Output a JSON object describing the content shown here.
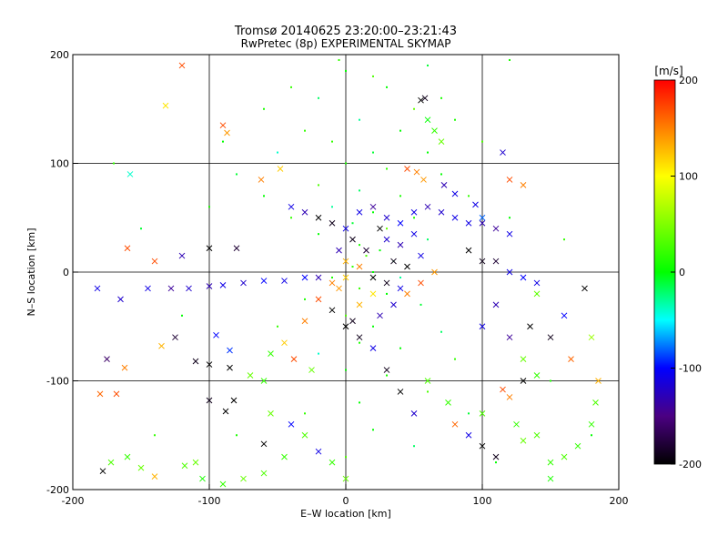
{
  "chart_data": {
    "type": "scatter",
    "title": "Tromsø 20140625 23:20:00–23:21:43",
    "subtitle": "RwPretec (8p) EXPERIMENTAL SKYMAP",
    "xlabel": "E–W location [km]",
    "ylabel": "N–S location [km]",
    "xlim": [
      -200,
      200
    ],
    "ylim": [
      -200,
      200
    ],
    "x_ticks": [
      "-200",
      "-100",
      "0",
      "100",
      "200"
    ],
    "y_ticks": [
      "-200",
      "-100",
      "0",
      "100",
      "200"
    ],
    "grid": true,
    "colorbar": {
      "label": "[m/s]",
      "range": [
        -200,
        200
      ],
      "ticks": [
        "200",
        "100",
        "0",
        "-100",
        "-200"
      ],
      "colormap": "rainbow"
    },
    "series": [
      {
        "marker": "dot",
        "points": [
          [
            -5,
            195,
            20
          ],
          [
            0,
            185,
            0
          ],
          [
            20,
            180,
            30
          ],
          [
            60,
            190,
            -10
          ],
          [
            120,
            195,
            10
          ],
          [
            -40,
            170,
            20
          ],
          [
            -20,
            160,
            -20
          ],
          [
            30,
            170,
            0
          ],
          [
            70,
            160,
            10
          ],
          [
            50,
            150,
            40
          ],
          [
            -60,
            150,
            10
          ],
          [
            10,
            140,
            -30
          ],
          [
            -30,
            130,
            20
          ],
          [
            40,
            130,
            0
          ],
          [
            80,
            140,
            10
          ],
          [
            -90,
            120,
            0
          ],
          [
            -10,
            120,
            20
          ],
          [
            20,
            110,
            -10
          ],
          [
            60,
            110,
            0
          ],
          [
            100,
            120,
            30
          ],
          [
            -50,
            110,
            -40
          ],
          [
            0,
            100,
            10
          ],
          [
            30,
            95,
            20
          ],
          [
            -80,
            90,
            -10
          ],
          [
            70,
            90,
            0
          ],
          [
            -20,
            80,
            30
          ],
          [
            10,
            75,
            -20
          ],
          [
            40,
            70,
            10
          ],
          [
            -60,
            70,
            0
          ],
          [
            90,
            70,
            20
          ],
          [
            -10,
            60,
            -30
          ],
          [
            20,
            55,
            0
          ],
          [
            50,
            50,
            10
          ],
          [
            -40,
            50,
            20
          ],
          [
            5,
            45,
            -10
          ],
          [
            30,
            40,
            40
          ],
          [
            -20,
            35,
            0
          ],
          [
            60,
            30,
            -20
          ],
          [
            10,
            25,
            10
          ],
          [
            25,
            20,
            0
          ],
          [
            15,
            15,
            30
          ],
          [
            35,
            10,
            -10
          ],
          [
            5,
            5,
            20
          ],
          [
            20,
            0,
            0
          ],
          [
            -10,
            -5,
            10
          ],
          [
            40,
            -5,
            -30
          ],
          [
            10,
            -15,
            20
          ],
          [
            30,
            -20,
            0
          ],
          [
            -30,
            -25,
            10
          ],
          [
            55,
            -30,
            -10
          ],
          [
            0,
            -40,
            30
          ],
          [
            20,
            -50,
            0
          ],
          [
            -50,
            -50,
            20
          ],
          [
            70,
            -55,
            -20
          ],
          [
            10,
            -65,
            10
          ],
          [
            40,
            -70,
            0
          ],
          [
            -20,
            -75,
            -40
          ],
          [
            80,
            -80,
            20
          ],
          [
            0,
            -90,
            0
          ],
          [
            30,
            -95,
            10
          ],
          [
            -60,
            -100,
            -10
          ],
          [
            60,
            -110,
            30
          ],
          [
            10,
            -120,
            0
          ],
          [
            -30,
            -130,
            20
          ],
          [
            90,
            -130,
            -10
          ],
          [
            20,
            -145,
            0
          ],
          [
            -80,
            -150,
            10
          ],
          [
            50,
            -160,
            -20
          ],
          [
            0,
            -170,
            30
          ],
          [
            110,
            -175,
            0
          ],
          [
            -140,
            -150,
            20
          ],
          [
            150,
            -100,
            10
          ],
          [
            -150,
            40,
            -10
          ],
          [
            -120,
            -40,
            0
          ],
          [
            160,
            30,
            20
          ],
          [
            140,
            -20,
            -30
          ],
          [
            -100,
            60,
            10
          ],
          [
            120,
            50,
            0
          ],
          [
            -170,
            100,
            20
          ],
          [
            180,
            -150,
            0
          ]
        ]
      },
      {
        "marker": "cross",
        "points": [
          [
            -120,
            190,
            170
          ],
          [
            -132,
            153,
            110
          ],
          [
            -90,
            135,
            170
          ],
          [
            -87,
            128,
            140
          ],
          [
            -158,
            90,
            -40
          ],
          [
            -62,
            85,
            150
          ],
          [
            -48,
            95,
            120
          ],
          [
            -120,
            15,
            -130
          ],
          [
            -160,
            22,
            170
          ],
          [
            -140,
            10,
            170
          ],
          [
            -100,
            22,
            -200
          ],
          [
            -80,
            22,
            -180
          ],
          [
            -182,
            -15,
            -110
          ],
          [
            -165,
            -25,
            -120
          ],
          [
            -145,
            -15,
            -110
          ],
          [
            -128,
            -15,
            -140
          ],
          [
            -115,
            -15,
            -120
          ],
          [
            -100,
            -13,
            -130
          ],
          [
            -90,
            -12,
            -110
          ],
          [
            -75,
            -10,
            -120
          ],
          [
            -60,
            -8,
            -100
          ],
          [
            -45,
            -8,
            -110
          ],
          [
            -30,
            -5,
            -100
          ],
          [
            -20,
            -5,
            -130
          ],
          [
            -175,
            -80,
            -160
          ],
          [
            -162,
            -88,
            150
          ],
          [
            -135,
            -68,
            130
          ],
          [
            -110,
            -82,
            -190
          ],
          [
            -100,
            -85,
            -200
          ],
          [
            -95,
            -58,
            -100
          ],
          [
            -125,
            -60,
            -180
          ],
          [
            -100,
            -118,
            -190
          ],
          [
            -88,
            -128,
            -200
          ],
          [
            -85,
            -72,
            -90
          ],
          [
            -55,
            -75,
            20
          ],
          [
            -25,
            -90,
            40
          ],
          [
            -180,
            -112,
            160
          ],
          [
            -168,
            -112,
            170
          ],
          [
            -172,
            -175,
            30
          ],
          [
            -178,
            -183,
            -200
          ],
          [
            -118,
            -178,
            30
          ],
          [
            -110,
            -175,
            40
          ],
          [
            -60,
            -158,
            -200
          ],
          [
            -82,
            -118,
            -200
          ],
          [
            -60,
            -100,
            20
          ],
          [
            -38,
            -80,
            170
          ],
          [
            -45,
            -65,
            120
          ],
          [
            -30,
            -45,
            150
          ],
          [
            -10,
            -35,
            -200
          ],
          [
            5,
            -45,
            -190
          ],
          [
            10,
            -30,
            130
          ],
          [
            20,
            -20,
            110
          ],
          [
            -5,
            -15,
            140
          ],
          [
            -20,
            -25,
            170
          ],
          [
            -10,
            -10,
            150
          ],
          [
            0,
            -5,
            120
          ],
          [
            -40,
            60,
            -110
          ],
          [
            -30,
            55,
            -130
          ],
          [
            -20,
            50,
            -200
          ],
          [
            -10,
            45,
            -190
          ],
          [
            0,
            40,
            -110
          ],
          [
            10,
            55,
            -110
          ],
          [
            20,
            60,
            -140
          ],
          [
            30,
            50,
            -120
          ],
          [
            40,
            45,
            -100
          ],
          [
            50,
            55,
            -110
          ],
          [
            60,
            60,
            -130
          ],
          [
            70,
            55,
            -120
          ],
          [
            80,
            50,
            -110
          ],
          [
            90,
            45,
            -110
          ],
          [
            100,
            45,
            -130
          ],
          [
            110,
            40,
            -140
          ],
          [
            120,
            35,
            -110
          ],
          [
            45,
            95,
            170
          ],
          [
            52,
            92,
            150
          ],
          [
            57,
            85,
            140
          ],
          [
            72,
            80,
            -130
          ],
          [
            80,
            72,
            -110
          ],
          [
            95,
            62,
            -110
          ],
          [
            100,
            50,
            -80
          ],
          [
            120,
            85,
            170
          ],
          [
            130,
            80,
            150
          ],
          [
            115,
            110,
            -120
          ],
          [
            55,
            158,
            -200
          ],
          [
            58,
            160,
            -190
          ],
          [
            60,
            140,
            0
          ],
          [
            65,
            130,
            20
          ],
          [
            70,
            120,
            40
          ],
          [
            90,
            20,
            -200
          ],
          [
            100,
            10,
            -190
          ],
          [
            110,
            10,
            -180
          ],
          [
            120,
            0,
            -110
          ],
          [
            130,
            -5,
            -100
          ],
          [
            140,
            -10,
            -110
          ],
          [
            110,
            -30,
            -130
          ],
          [
            100,
            -50,
            -110
          ],
          [
            120,
            -60,
            -140
          ],
          [
            135,
            -50,
            -200
          ],
          [
            150,
            -60,
            -190
          ],
          [
            130,
            -80,
            40
          ],
          [
            140,
            -95,
            20
          ],
          [
            115,
            -108,
            170
          ],
          [
            120,
            -115,
            150
          ],
          [
            130,
            -100,
            -200
          ],
          [
            100,
            -130,
            30
          ],
          [
            125,
            -140,
            20
          ],
          [
            130,
            -155,
            40
          ],
          [
            140,
            -150,
            30
          ],
          [
            150,
            -175,
            20
          ],
          [
            160,
            -170,
            30
          ],
          [
            150,
            -190,
            10
          ],
          [
            170,
            -160,
            20
          ],
          [
            185,
            -100,
            130
          ],
          [
            183,
            -120,
            30
          ],
          [
            180,
            -140,
            20
          ],
          [
            165,
            -80,
            160
          ],
          [
            180,
            -60,
            60
          ],
          [
            160,
            -40,
            -100
          ],
          [
            175,
            -15,
            -200
          ],
          [
            140,
            -20,
            40
          ],
          [
            60,
            -100,
            30
          ],
          [
            75,
            -120,
            20
          ],
          [
            80,
            -140,
            160
          ],
          [
            90,
            -150,
            -110
          ],
          [
            100,
            -160,
            -200
          ],
          [
            110,
            -170,
            -190
          ],
          [
            50,
            -130,
            -120
          ],
          [
            40,
            -110,
            -200
          ],
          [
            30,
            -90,
            -190
          ],
          [
            20,
            -70,
            -110
          ],
          [
            10,
            -60,
            -190
          ],
          [
            0,
            -50,
            -200
          ],
          [
            25,
            -40,
            -130
          ],
          [
            35,
            -30,
            -120
          ],
          [
            45,
            -20,
            150
          ],
          [
            55,
            -10,
            170
          ],
          [
            65,
            0,
            140
          ],
          [
            45,
            5,
            -200
          ],
          [
            35,
            10,
            -190
          ],
          [
            55,
            15,
            -110
          ],
          [
            40,
            25,
            -130
          ],
          [
            30,
            30,
            -120
          ],
          [
            25,
            40,
            -200
          ],
          [
            50,
            35,
            -110
          ],
          [
            5,
            30,
            -190
          ],
          [
            15,
            20,
            -180
          ],
          [
            -5,
            20,
            -130
          ],
          [
            0,
            10,
            130
          ],
          [
            10,
            5,
            150
          ],
          [
            20,
            -5,
            -200
          ],
          [
            30,
            -10,
            -190
          ],
          [
            40,
            -15,
            -110
          ],
          [
            -85,
            -88,
            -200
          ],
          [
            -70,
            -95,
            40
          ],
          [
            -55,
            -130,
            40
          ],
          [
            -40,
            -140,
            -100
          ],
          [
            -30,
            -150,
            30
          ],
          [
            -20,
            -165,
            -110
          ],
          [
            -10,
            -175,
            20
          ],
          [
            0,
            -190,
            40
          ],
          [
            -45,
            -170,
            20
          ],
          [
            -60,
            -185,
            30
          ],
          [
            -75,
            -190,
            40
          ],
          [
            -90,
            -195,
            20
          ],
          [
            -105,
            -190,
            10
          ],
          [
            -140,
            -188,
            130
          ],
          [
            -150,
            -180,
            40
          ],
          [
            -160,
            -170,
            20
          ]
        ]
      }
    ]
  }
}
